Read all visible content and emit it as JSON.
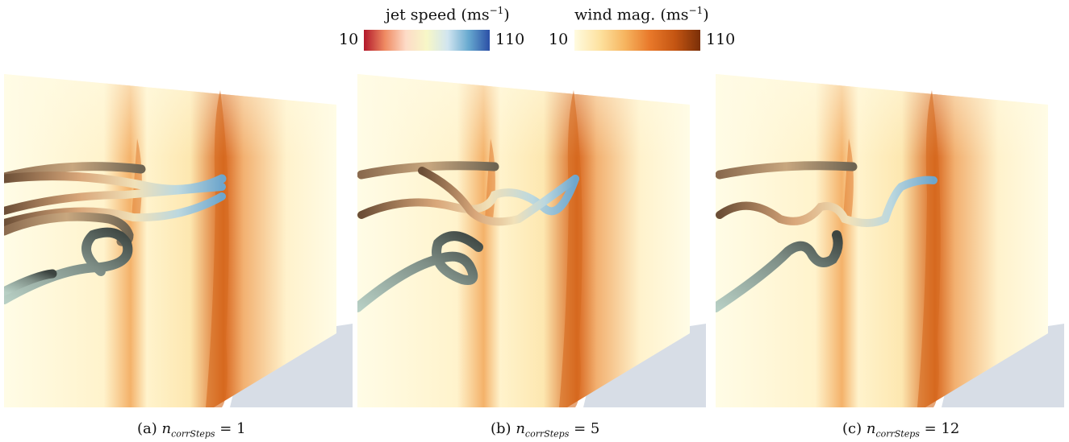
{
  "colorbars": [
    {
      "title": "jet speed (ms",
      "title_exp": "−1",
      "title_close": ")",
      "min": "10",
      "max": "110",
      "colors": [
        "#b2182b",
        "#ef8a62",
        "#fddbc7",
        "#f7f7c7",
        "#d1e5f0",
        "#67a9cf",
        "#2b4fa6"
      ]
    },
    {
      "title": "wind mag. (ms",
      "title_exp": "−1",
      "title_close": ")",
      "min": "10",
      "max": "110",
      "colors": [
        "#fffbe0",
        "#fde2a0",
        "#f6b560",
        "#e8782a",
        "#c45512",
        "#7a2f08"
      ]
    }
  ],
  "panels": [
    {
      "label": "(a)",
      "var": "n",
      "sub": "corrSteps",
      "eq": " = 1"
    },
    {
      "label": "(b)",
      "var": "n",
      "sub": "corrSteps",
      "eq": " = 5"
    },
    {
      "label": "(c)",
      "var": "n",
      "sub": "corrSteps",
      "eq": " = 12"
    }
  ]
}
